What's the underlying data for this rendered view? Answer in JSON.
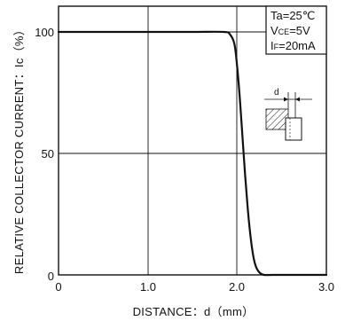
{
  "chart_data": {
    "type": "line",
    "title": "",
    "xlabel": "DISTANCE：d（mm）",
    "ylabel": "RELATIVE COLLECTOR CURRENT：Ic（%）",
    "xlim": [
      0,
      3.0
    ],
    "ylim": [
      0,
      100
    ],
    "x_ticks": [
      "0",
      "1.0",
      "2.0",
      "3.0"
    ],
    "y_ticks": [
      "0",
      "50",
      "100"
    ],
    "grid": true,
    "legend": "none",
    "conditions": {
      "ta": {
        "main": "Ta=25℃",
        "sub": ""
      },
      "vce": {
        "main": "V",
        "sub": "CE",
        "tail": "=5V"
      },
      "if": {
        "main": "I",
        "sub": "F",
        "tail": "=20mA"
      }
    },
    "diagram_label": "d",
    "series": [
      {
        "name": "",
        "color": "#111111",
        "x": [
          0,
          0.5,
          1.0,
          1.5,
          1.85,
          1.92,
          1.97,
          2.0,
          2.03,
          2.06,
          2.09,
          2.12,
          2.15,
          2.18,
          2.21,
          2.25,
          2.3,
          2.4,
          2.6,
          3.0
        ],
        "y": [
          100,
          100,
          100,
          100,
          100,
          99,
          95,
          86,
          73,
          57,
          41,
          27,
          16,
          8,
          3.5,
          1,
          0,
          0,
          0,
          0
        ]
      }
    ]
  }
}
